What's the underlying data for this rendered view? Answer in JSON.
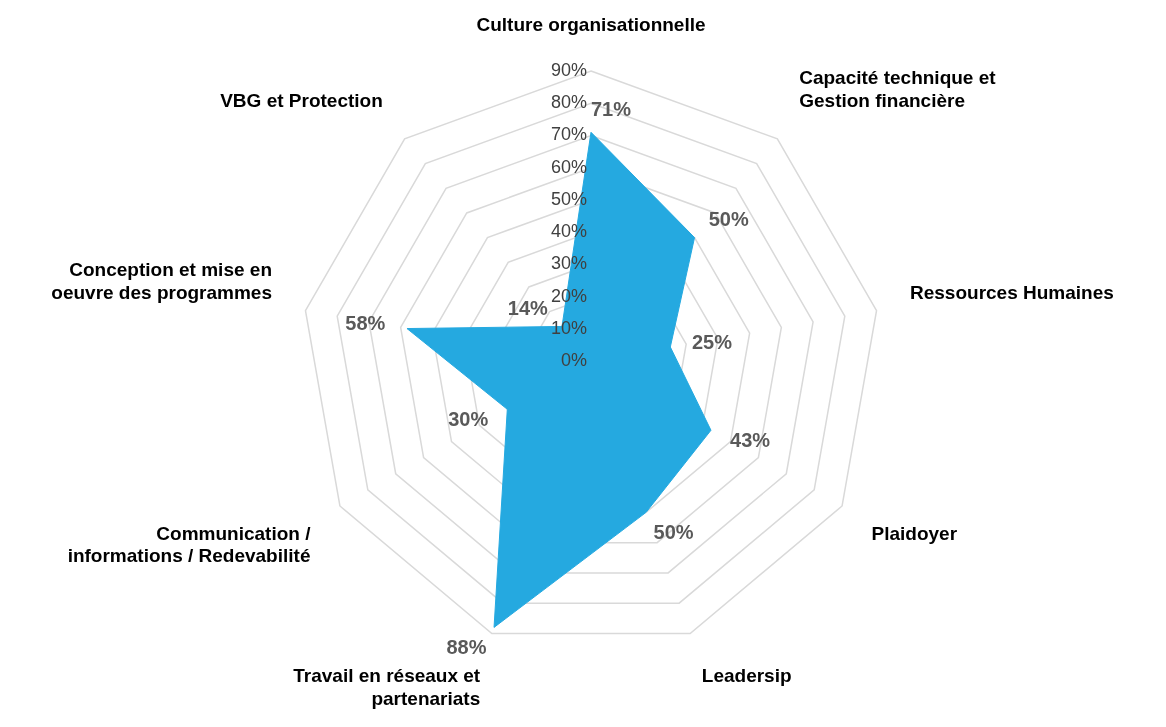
{
  "chart_data": {
    "type": "radar",
    "categories": [
      "Culture organisationnelle",
      "Capacité technique et\nGestion financière",
      "Ressources Humaines",
      "Plaidoyer",
      "Leadersip",
      "Travail en réseaux et\npartenariats",
      "Communication /\ninformations / Redevabilité",
      "Conception et mise en\noeuvre des programmes",
      "VBG et Protection"
    ],
    "series": [
      {
        "color": "#25a9e0",
        "values": [
          71,
          50,
          25,
          43,
          50,
          88,
          30,
          58,
          14
        ],
        "value_labels": [
          "71%",
          "50%",
          "25%",
          "43%",
          "50%",
          "88%",
          "30%",
          "58%",
          "14%"
        ]
      }
    ],
    "ylim": [
      0,
      90
    ],
    "yticks": [
      {
        "value": 0,
        "label": "0%"
      },
      {
        "value": 10,
        "label": "10%"
      },
      {
        "value": 20,
        "label": "20%"
      },
      {
        "value": 30,
        "label": "30%"
      },
      {
        "value": 40,
        "label": "40%"
      },
      {
        "value": 50,
        "label": "50%"
      },
      {
        "value": 60,
        "label": "60%"
      },
      {
        "value": 70,
        "label": "70%"
      },
      {
        "value": 80,
        "label": "80%"
      },
      {
        "value": 90,
        "label": "90%"
      }
    ],
    "grid": true,
    "legend": false,
    "marker": "none"
  }
}
